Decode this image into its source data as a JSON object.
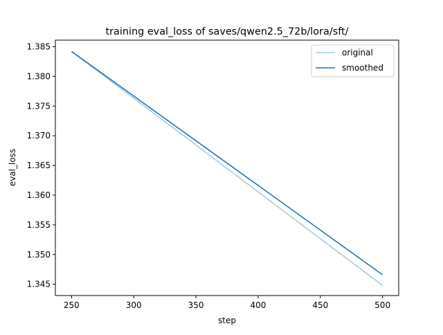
{
  "chart_data": {
    "type": "line",
    "title": "training eval_loss of saves/qwen2.5_72b/lora/sft/",
    "xlabel": "step",
    "ylabel": "eval_loss",
    "xlim": [
      237,
      513
    ],
    "ylim": [
      1.3431,
      1.3861
    ],
    "xticks": [
      250,
      300,
      350,
      400,
      450,
      500
    ],
    "yticks": [
      1.345,
      1.35,
      1.355,
      1.36,
      1.365,
      1.37,
      1.375,
      1.38,
      1.385
    ],
    "ytick_labels": [
      "1.345",
      "1.350",
      "1.355",
      "1.360",
      "1.365",
      "1.370",
      "1.375",
      "1.380",
      "1.385"
    ],
    "grid": false,
    "legend_position": "top-right",
    "series": [
      {
        "name": "original",
        "color": "#a6cbe3",
        "x": [
          250,
          500
        ],
        "y": [
          1.3842,
          1.3448
        ]
      },
      {
        "name": "smoothed",
        "color": "#1f77b4",
        "x": [
          250,
          500
        ],
        "y": [
          1.3842,
          1.3466
        ]
      }
    ]
  }
}
